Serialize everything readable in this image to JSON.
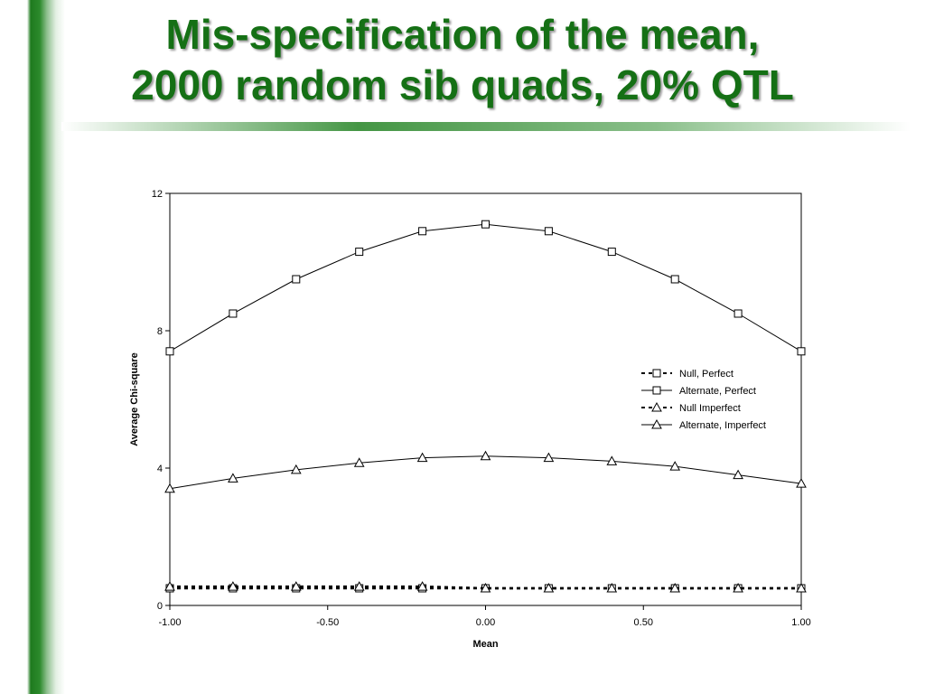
{
  "slide": {
    "title_line1": "Mis-specification of the mean,",
    "title_line2": "2000 random sib quads, 20% QTL",
    "accent_color": "#157015"
  },
  "chart_data": {
    "type": "line",
    "title": "",
    "xlabel": "Mean",
    "ylabel": "Average Chi-square",
    "x": [
      -1.0,
      -0.8,
      -0.6,
      -0.4,
      -0.2,
      0.0,
      0.2,
      0.4,
      0.6,
      0.8,
      1.0
    ],
    "xlim": [
      -1.0,
      1.0
    ],
    "ylim": [
      0,
      12
    ],
    "x_ticks": [
      "-1.00",
      "-0.50",
      "0.00",
      "0.50",
      "1.00"
    ],
    "x_tick_values": [
      -1.0,
      -0.5,
      0.0,
      0.5,
      1.0
    ],
    "y_ticks": [
      "0",
      "4",
      "8",
      "12"
    ],
    "y_tick_values": [
      0,
      4,
      8,
      12
    ],
    "grid": false,
    "legend_position": "right",
    "series": [
      {
        "name": "Null, Perfect",
        "marker": "square",
        "dashed": true,
        "values": [
          0.5,
          0.5,
          0.5,
          0.5,
          0.5,
          0.5,
          0.5,
          0.5,
          0.5,
          0.5,
          0.5
        ]
      },
      {
        "name": "Alternate, Perfect",
        "marker": "square",
        "dashed": false,
        "values": [
          7.4,
          8.5,
          9.5,
          10.3,
          10.9,
          11.1,
          10.9,
          10.3,
          9.5,
          8.5,
          7.4
        ]
      },
      {
        "name": "Null Imperfect",
        "marker": "triangle",
        "dashed": true,
        "values": [
          0.55,
          0.55,
          0.55,
          0.55,
          0.55,
          0.5,
          0.5,
          0.5,
          0.5,
          0.5,
          0.5
        ]
      },
      {
        "name": "Alternate, Imperfect",
        "marker": "triangle",
        "dashed": false,
        "values": [
          3.4,
          3.7,
          3.95,
          4.15,
          4.3,
          4.35,
          4.3,
          4.2,
          4.05,
          3.8,
          3.55
        ]
      }
    ]
  }
}
